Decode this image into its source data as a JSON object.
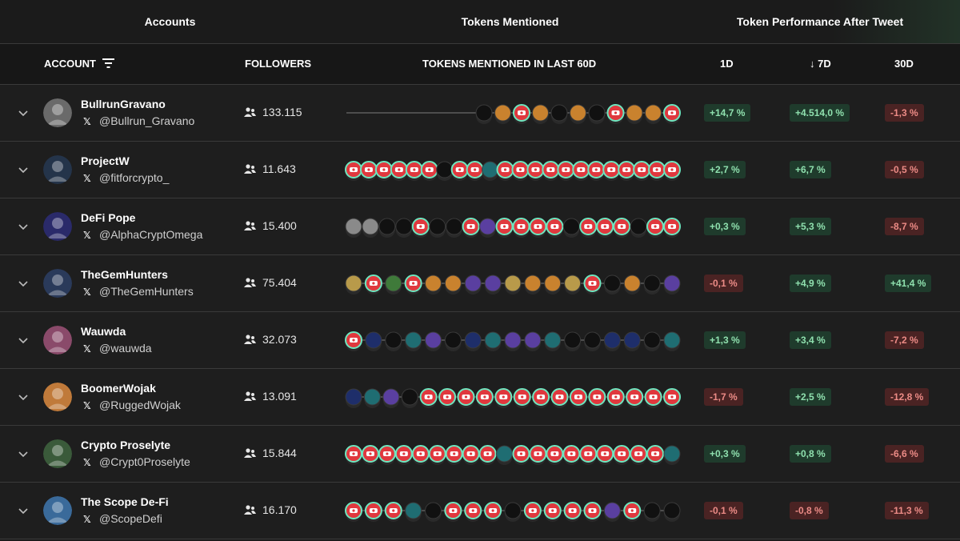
{
  "groups": {
    "accounts": "Accounts",
    "tokens": "Tokens Mentioned",
    "performance": "Token Performance After Tweet"
  },
  "columns": {
    "account": "ACCOUNT",
    "followers": "FOLLOWERS",
    "tokens": "TOKENS MENTIONED IN LAST 60D",
    "d1": "1D",
    "d7": "↓ 7D",
    "d30": "30D"
  },
  "colors": {
    "positive_text": "#8fe0ae",
    "positive_bg": "#1f3b2c",
    "negative_text": "#ec8b86",
    "negative_bg": "#4a2323",
    "token_ring": "#6ee7c0",
    "token_red": "#e0383e"
  },
  "rows": [
    {
      "name": "BullrunGravano",
      "handle": "@Bullrun_Gravano",
      "followers": "133.115",
      "d1": "+14,7 %",
      "d7": "+4.514,0 %",
      "d30": "-1,3 %",
      "s1": "pos",
      "s7": "pos",
      "s30": "neg",
      "avatar": "#6a6a6a",
      "tokens": [
        {
          "t": "dark"
        },
        {
          "t": "orange"
        },
        {
          "t": "red"
        },
        {
          "t": "orange"
        },
        {
          "t": "dark"
        },
        {
          "t": "orange"
        },
        {
          "t": "dark"
        },
        {
          "t": "red"
        },
        {
          "t": "orange"
        },
        {
          "t": "orange"
        },
        {
          "t": "red"
        }
      ]
    },
    {
      "name": "ProjectW",
      "handle": "@fitforcrypto_",
      "followers": "11.643",
      "d1": "+2,7 %",
      "d7": "+6,7 %",
      "d30": "-0,5 %",
      "s1": "pos",
      "s7": "pos",
      "s30": "neg",
      "avatar": "#24344a",
      "tokens": [
        {
          "t": "red"
        },
        {
          "t": "red"
        },
        {
          "t": "red"
        },
        {
          "t": "red"
        },
        {
          "t": "red"
        },
        {
          "t": "red"
        },
        {
          "t": "dark"
        },
        {
          "t": "red"
        },
        {
          "t": "red"
        },
        {
          "t": "teal"
        },
        {
          "t": "red"
        },
        {
          "t": "red"
        },
        {
          "t": "red"
        },
        {
          "t": "red"
        },
        {
          "t": "red"
        },
        {
          "t": "red"
        },
        {
          "t": "red"
        },
        {
          "t": "red"
        },
        {
          "t": "red"
        },
        {
          "t": "red"
        },
        {
          "t": "red"
        },
        {
          "t": "red"
        }
      ]
    },
    {
      "name": "DeFi Pope",
      "handle": "@AlphaCryptOmega",
      "followers": "15.400",
      "d1": "+0,3 %",
      "d7": "+5,3 %",
      "d30": "-8,7 %",
      "s1": "pos",
      "s7": "pos",
      "s30": "neg",
      "avatar": "#2a2a6a",
      "tokens": [
        {
          "t": "grey"
        },
        {
          "t": "grey"
        },
        {
          "t": "dark"
        },
        {
          "t": "dark"
        },
        {
          "t": "red"
        },
        {
          "t": "dark"
        },
        {
          "t": "dark"
        },
        {
          "t": "red"
        },
        {
          "t": "purple"
        },
        {
          "t": "red"
        },
        {
          "t": "red"
        },
        {
          "t": "red"
        },
        {
          "t": "red"
        },
        {
          "t": "dark"
        },
        {
          "t": "red"
        },
        {
          "t": "red"
        },
        {
          "t": "red"
        },
        {
          "t": "dark"
        },
        {
          "t": "red"
        },
        {
          "t": "red"
        }
      ]
    },
    {
      "name": "TheGemHunters",
      "handle": "@TheGemHunters",
      "followers": "75.404",
      "d1": "-0,1 %",
      "d7": "+4,9 %",
      "d30": "+41,4 %",
      "s1": "neg",
      "s7": "pos",
      "s30": "pos",
      "avatar": "#2a3a5a",
      "tokens": [
        {
          "t": "gold"
        },
        {
          "t": "red"
        },
        {
          "t": "green"
        },
        {
          "t": "red"
        },
        {
          "t": "orange"
        },
        {
          "t": "orange"
        },
        {
          "t": "purple"
        },
        {
          "t": "purple"
        },
        {
          "t": "gold"
        },
        {
          "t": "orange"
        },
        {
          "t": "orange"
        },
        {
          "t": "gold"
        },
        {
          "t": "red"
        },
        {
          "t": "dark"
        },
        {
          "t": "orange"
        },
        {
          "t": "dark"
        },
        {
          "t": "purple"
        }
      ]
    },
    {
      "name": "Wauwda",
      "handle": "@wauwda",
      "followers": "32.073",
      "d1": "+1,3 %",
      "d7": "+3,4 %",
      "d30": "-7,2 %",
      "s1": "pos",
      "s7": "pos",
      "s30": "neg",
      "avatar": "#8a4a6a",
      "tokens": [
        {
          "t": "red"
        },
        {
          "t": "navy"
        },
        {
          "t": "dark"
        },
        {
          "t": "teal"
        },
        {
          "t": "purple"
        },
        {
          "t": "dark"
        },
        {
          "t": "navy"
        },
        {
          "t": "teal"
        },
        {
          "t": "purple"
        },
        {
          "t": "purple"
        },
        {
          "t": "teal"
        },
        {
          "t": "dark"
        },
        {
          "t": "dark"
        },
        {
          "t": "navy"
        },
        {
          "t": "navy"
        },
        {
          "t": "dark"
        },
        {
          "t": "teal"
        }
      ]
    },
    {
      "name": "BoomerWojak",
      "handle": "@RuggedWojak",
      "followers": "13.091",
      "d1": "-1,7 %",
      "d7": "+2,5 %",
      "d30": "-12,8 %",
      "s1": "neg",
      "s7": "pos",
      "s30": "neg",
      "avatar": "#c07a3a",
      "tokens": [
        {
          "t": "navy"
        },
        {
          "t": "teal"
        },
        {
          "t": "purple"
        },
        {
          "t": "dark"
        },
        {
          "t": "red"
        },
        {
          "t": "red"
        },
        {
          "t": "red"
        },
        {
          "t": "red"
        },
        {
          "t": "red"
        },
        {
          "t": "red"
        },
        {
          "t": "red"
        },
        {
          "t": "red"
        },
        {
          "t": "red"
        },
        {
          "t": "red"
        },
        {
          "t": "red"
        },
        {
          "t": "red"
        },
        {
          "t": "red"
        },
        {
          "t": "red"
        }
      ]
    },
    {
      "name": "Crypto Proselyte",
      "handle": "@Crypt0Proselyte",
      "followers": "15.844",
      "d1": "+0,3 %",
      "d7": "+0,8 %",
      "d30": "-6,6 %",
      "s1": "pos",
      "s7": "pos",
      "s30": "neg",
      "avatar": "#3a5a3a",
      "tokens": [
        {
          "t": "red"
        },
        {
          "t": "red"
        },
        {
          "t": "red"
        },
        {
          "t": "red"
        },
        {
          "t": "red"
        },
        {
          "t": "red"
        },
        {
          "t": "red"
        },
        {
          "t": "red"
        },
        {
          "t": "red"
        },
        {
          "t": "teal"
        },
        {
          "t": "red"
        },
        {
          "t": "red"
        },
        {
          "t": "red"
        },
        {
          "t": "red"
        },
        {
          "t": "red"
        },
        {
          "t": "red"
        },
        {
          "t": "red"
        },
        {
          "t": "red"
        },
        {
          "t": "red"
        },
        {
          "t": "teal"
        }
      ]
    },
    {
      "name": "The Scope De-Fi",
      "handle": "@ScopeDefi",
      "followers": "16.170",
      "d1": "-0,1 %",
      "d7": "-0,8 %",
      "d30": "-11,3 %",
      "s1": "neg",
      "s7": "neg",
      "s30": "neg",
      "avatar": "#3a6a9a",
      "tokens": [
        {
          "t": "red"
        },
        {
          "t": "red"
        },
        {
          "t": "red"
        },
        {
          "t": "teal"
        },
        {
          "t": "dark"
        },
        {
          "t": "red"
        },
        {
          "t": "red"
        },
        {
          "t": "red"
        },
        {
          "t": "dark"
        },
        {
          "t": "red"
        },
        {
          "t": "red"
        },
        {
          "t": "red"
        },
        {
          "t": "red"
        },
        {
          "t": "purple"
        },
        {
          "t": "red"
        },
        {
          "t": "dark"
        },
        {
          "t": "dark"
        }
      ]
    }
  ]
}
